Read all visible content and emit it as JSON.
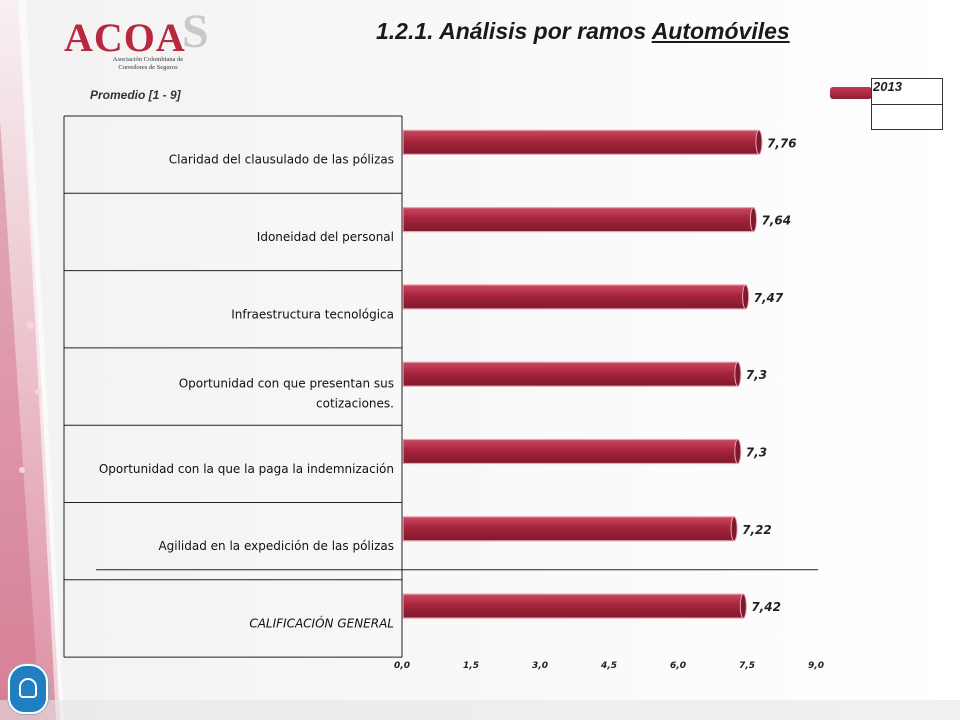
{
  "logo": {
    "text": "ACOA",
    "s": "S",
    "subtitle_line1": "Asociación Colombiana de",
    "subtitle_line2": "Corredores de Seguros"
  },
  "title": {
    "prefix": "1.2.1. Análisis por ramos ",
    "highlight": "Automóviles"
  },
  "unit_label": "Promedio  [1 - 9]",
  "legend": {
    "label": "2013"
  },
  "colors": {
    "bar": "#a8243c",
    "bar_light": "#c94a62",
    "bar_dark": "#7e1a2c"
  },
  "chart_data": {
    "type": "bar",
    "orientation": "horizontal",
    "categories": [
      "Claridad del clausulado de las pólizas",
      "Idoneidad del personal",
      "Infraestructura tecnológica",
      "Oportunidad con que presentan sus cotizaciones.",
      "Oportunidad con la que la paga la indemnización",
      "Agilidad en la expedición de las pólizas",
      "CALIFICACIÓN GENERAL"
    ],
    "series": [
      {
        "name": "2013",
        "values": [
          7.76,
          7.64,
          7.47,
          7.3,
          7.3,
          7.22,
          7.42
        ]
      }
    ],
    "value_labels": [
      "7,76",
      "7,64",
      "7,47",
      "7,3",
      "7,3",
      "7,22",
      "7,42"
    ],
    "xlim": [
      0,
      9
    ],
    "xticks": [
      0,
      1.5,
      3,
      4.5,
      6,
      7.5,
      9
    ],
    "xtick_labels": [
      "0,0",
      "1,5",
      "3,0",
      "4,5",
      "6,0",
      "7,5",
      "9,0"
    ],
    "legend_position": "top-right",
    "grid": false
  }
}
